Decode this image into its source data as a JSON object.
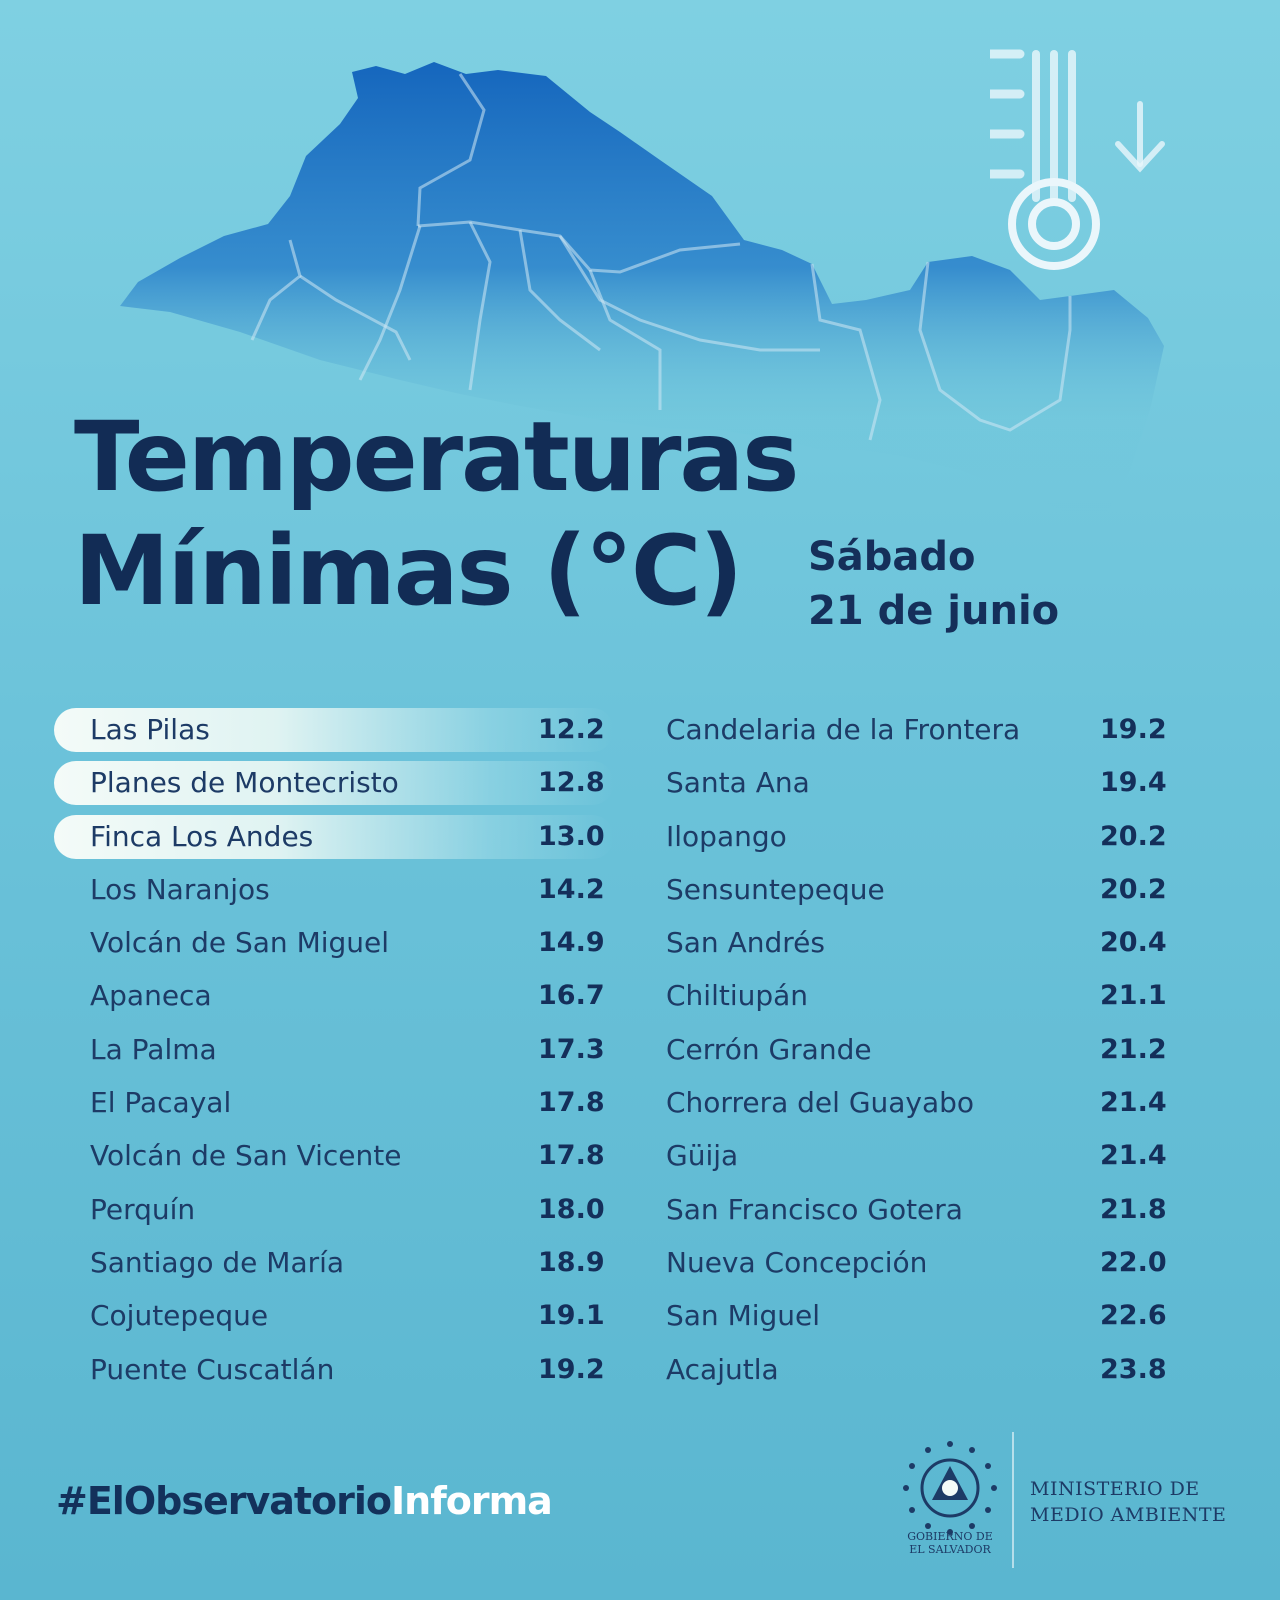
{
  "title": {
    "line1": "Temperaturas",
    "line2": "Mínimas (°C)"
  },
  "date": {
    "day": "Sábado",
    "date": "21 de junio"
  },
  "colors": {
    "title": "#122c55",
    "map": "#1b6fc0",
    "highlight": "#f4fbf8",
    "background": "#6cc3da"
  },
  "icons": {
    "thermometer": "thermometer-down-icon",
    "map": "el-salvador-map-icon",
    "seal": "government-seal-icon"
  },
  "stations_left": [
    {
      "name": "Las Pilas",
      "value": "12.2",
      "highlighted": true
    },
    {
      "name": "Planes de Montecristo",
      "value": "12.8",
      "highlighted": true
    },
    {
      "name": "Finca Los Andes",
      "value": "13.0",
      "highlighted": true
    },
    {
      "name": "Los Naranjos",
      "value": "14.2",
      "highlighted": false
    },
    {
      "name": "Volcán de San Miguel",
      "value": "14.9",
      "highlighted": false
    },
    {
      "name": "Apaneca",
      "value": "16.7",
      "highlighted": false
    },
    {
      "name": "La Palma",
      "value": "17.3",
      "highlighted": false
    },
    {
      "name": "El Pacayal",
      "value": "17.8",
      "highlighted": false
    },
    {
      "name": "Volcán de San Vicente",
      "value": "17.8",
      "highlighted": false
    },
    {
      "name": "Perquín",
      "value": "18.0",
      "highlighted": false
    },
    {
      "name": "Santiago de María",
      "value": "18.9",
      "highlighted": false
    },
    {
      "name": "Cojutepeque",
      "value": "19.1",
      "highlighted": false
    },
    {
      "name": "Puente Cuscatlán",
      "value": "19.2",
      "highlighted": false
    }
  ],
  "stations_right": [
    {
      "name": "Candelaria de la Frontera",
      "value": "19.2"
    },
    {
      "name": "Santa Ana",
      "value": "19.4"
    },
    {
      "name": "Ilopango",
      "value": "20.2"
    },
    {
      "name": "Sensuntepeque",
      "value": "20.2"
    },
    {
      "name": "San Andrés",
      "value": "20.4"
    },
    {
      "name": "Chiltiupán",
      "value": "21.1"
    },
    {
      "name": "Cerrón Grande",
      "value": "21.2"
    },
    {
      "name": "Chorrera del Guayabo",
      "value": "21.4"
    },
    {
      "name": "Güija",
      "value": "21.4"
    },
    {
      "name": "San Francisco Gotera",
      "value": "21.8"
    },
    {
      "name": "Nueva Concepción",
      "value": "22.0"
    },
    {
      "name": "San Miguel",
      "value": "22.6"
    },
    {
      "name": "Acajutla",
      "value": "23.8"
    }
  ],
  "footer": {
    "hashtag_dark": "#ElObservatorio",
    "hashtag_light": "Informa",
    "gov_line1": "GOBIERNO DE",
    "gov_line2": "EL SALVADOR",
    "ministry_line1": "MINISTERIO DE",
    "ministry_line2": "MEDIO AMBIENTE"
  }
}
